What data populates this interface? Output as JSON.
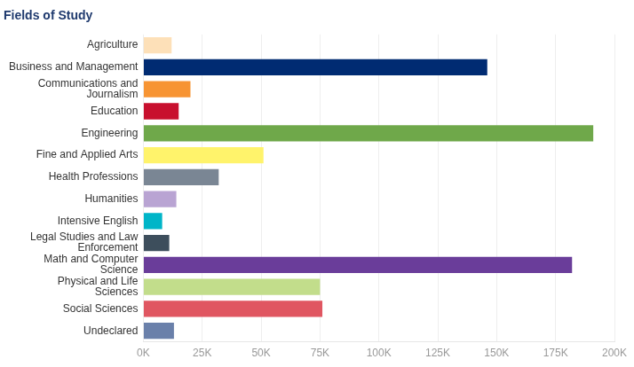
{
  "chart_data": {
    "type": "bar",
    "orientation": "horizontal",
    "title": "Fields of Study",
    "categories": [
      "Agriculture",
      "Business and Management",
      "Communications and Journalism",
      "Education",
      "Engineering",
      "Fine and Applied Arts",
      "Health Professions",
      "Humanities",
      "Intensive English",
      "Legal Studies and Law Enforcement",
      "Math and Computer Science",
      "Physical and Life Sciences",
      "Social Sciences",
      "Undeclared"
    ],
    "values": [
      12000,
      146000,
      20000,
      15000,
      191000,
      51000,
      32000,
      14000,
      8000,
      11000,
      182000,
      75000,
      76000,
      13000
    ],
    "colors": [
      "#fde0b8",
      "#002b72",
      "#f79433",
      "#c8102e",
      "#6fa84a",
      "#fff36b",
      "#7a8694",
      "#b9a4d3",
      "#00b5c8",
      "#3d4e5c",
      "#6a3d9a",
      "#c2dd8b",
      "#e05661",
      "#6a80aa"
    ],
    "xlim": [
      0,
      200000
    ],
    "xticks": [
      {
        "value": 0,
        "label": "0K"
      },
      {
        "value": 25000,
        "label": "25K"
      },
      {
        "value": 50000,
        "label": "50K"
      },
      {
        "value": 75000,
        "label": "75K"
      },
      {
        "value": 100000,
        "label": "100K"
      },
      {
        "value": 125000,
        "label": "125K"
      },
      {
        "value": 150000,
        "label": "150K"
      },
      {
        "value": 175000,
        "label": "175K"
      },
      {
        "value": 200000,
        "label": "200K"
      }
    ],
    "grid": true
  }
}
